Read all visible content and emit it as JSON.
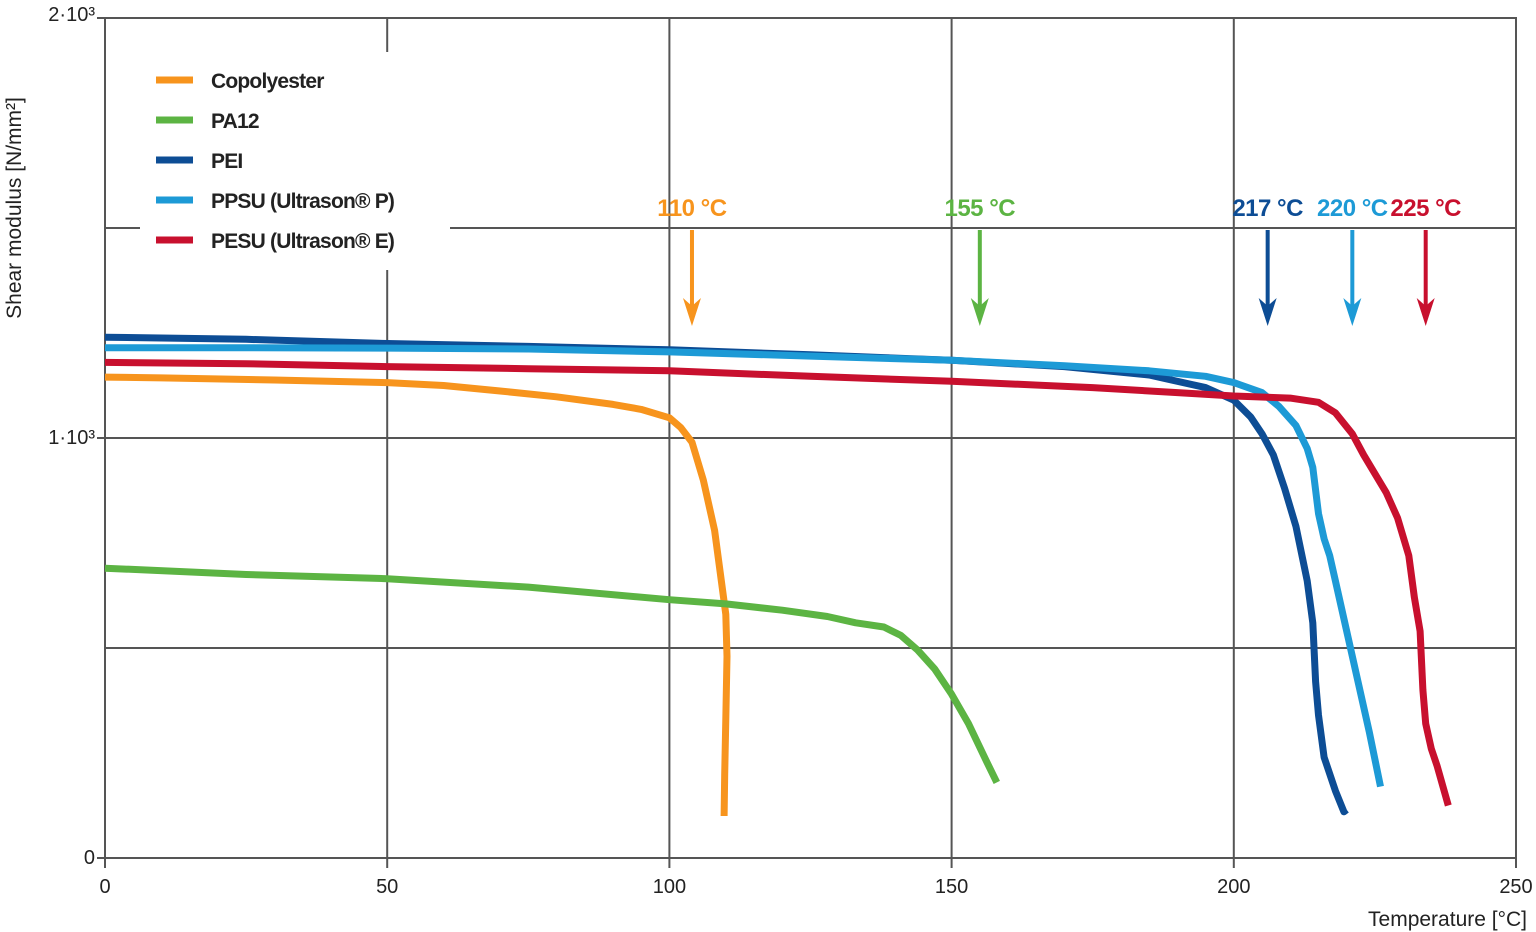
{
  "chart_data": {
    "type": "line",
    "xlabel": "Temperature [°C]",
    "ylabel": "Shear modulus [N/mm²]",
    "xlim": [
      0,
      250
    ],
    "ylim": [
      0,
      2000
    ],
    "x_ticks": [
      {
        "value": 0,
        "label": "0"
      },
      {
        "value": 50,
        "label": "50"
      },
      {
        "value": 100,
        "label": "100"
      },
      {
        "value": 150,
        "label": "150"
      },
      {
        "value": 200,
        "label": "200"
      },
      {
        "value": 250,
        "label": "250"
      }
    ],
    "y_ticks": [
      {
        "value": 0,
        "label": "0"
      },
      {
        "value": 1000,
        "label": "1·10³"
      },
      {
        "value": 2000,
        "label": "2·10³"
      }
    ],
    "y_gridlines": [
      500,
      1000,
      1500
    ],
    "grid": true,
    "legend_position": "top-left",
    "series": [
      {
        "name": "Copolyester",
        "color": "#F7941D",
        "points": [
          [
            0,
            1145
          ],
          [
            10,
            1143
          ],
          [
            30,
            1138
          ],
          [
            50,
            1132
          ],
          [
            60,
            1125
          ],
          [
            70,
            1112
          ],
          [
            80,
            1098
          ],
          [
            90,
            1080
          ],
          [
            95,
            1068
          ],
          [
            100,
            1048
          ],
          [
            102,
            1025
          ],
          [
            104,
            990
          ],
          [
            106,
            900
          ],
          [
            108,
            780
          ],
          [
            109,
            680
          ],
          [
            110,
            580
          ],
          [
            110.2,
            480
          ],
          [
            110,
            330
          ],
          [
            109.8,
            200
          ],
          [
            109.7,
            100
          ]
        ]
      },
      {
        "name": "PA12",
        "color": "#5CB443",
        "points": [
          [
            0,
            690
          ],
          [
            25,
            675
          ],
          [
            50,
            665
          ],
          [
            75,
            645
          ],
          [
            100,
            615
          ],
          [
            110,
            605
          ],
          [
            120,
            590
          ],
          [
            128,
            575
          ],
          [
            133,
            560
          ],
          [
            138,
            550
          ],
          [
            141,
            530
          ],
          [
            144,
            495
          ],
          [
            147,
            450
          ],
          [
            150,
            390
          ],
          [
            153,
            320
          ],
          [
            156,
            235
          ],
          [
            158,
            180
          ]
        ]
      },
      {
        "name": "PEI",
        "color": "#0D4D95",
        "points": [
          [
            0,
            1240
          ],
          [
            25,
            1235
          ],
          [
            50,
            1225
          ],
          [
            75,
            1218
          ],
          [
            100,
            1210
          ],
          [
            125,
            1198
          ],
          [
            150,
            1185
          ],
          [
            170,
            1170
          ],
          [
            185,
            1150
          ],
          [
            195,
            1120
          ],
          [
            200,
            1090
          ],
          [
            203,
            1050
          ],
          [
            205,
            1010
          ],
          [
            207,
            960
          ],
          [
            209,
            880
          ],
          [
            211,
            790
          ],
          [
            213,
            660
          ],
          [
            214,
            560
          ],
          [
            214.5,
            420
          ],
          [
            215,
            340
          ],
          [
            216,
            240
          ],
          [
            218,
            160
          ],
          [
            219.5,
            110
          ],
          [
            220,
            115
          ]
        ]
      },
      {
        "name": "PPSU (Ultrason® P)",
        "color": "#1D9AD6",
        "points": [
          [
            0,
            1215
          ],
          [
            25,
            1215
          ],
          [
            50,
            1214
          ],
          [
            75,
            1212
          ],
          [
            100,
            1205
          ],
          [
            125,
            1195
          ],
          [
            150,
            1185
          ],
          [
            170,
            1172
          ],
          [
            185,
            1160
          ],
          [
            195,
            1147
          ],
          [
            200,
            1132
          ],
          [
            205,
            1108
          ],
          [
            208,
            1075
          ],
          [
            211,
            1030
          ],
          [
            213,
            975
          ],
          [
            214,
            930
          ],
          [
            215,
            820
          ],
          [
            216,
            760
          ],
          [
            217,
            720
          ],
          [
            218,
            660
          ],
          [
            220,
            540
          ],
          [
            222,
            420
          ],
          [
            224,
            300
          ],
          [
            226,
            170
          ]
        ]
      },
      {
        "name": "PESU (Ultrason® E)",
        "color": "#C8102E",
        "points": [
          [
            0,
            1180
          ],
          [
            25,
            1177
          ],
          [
            50,
            1170
          ],
          [
            75,
            1165
          ],
          [
            100,
            1160
          ],
          [
            125,
            1147
          ],
          [
            150,
            1135
          ],
          [
            175,
            1120
          ],
          [
            190,
            1108
          ],
          [
            200,
            1100
          ],
          [
            210,
            1095
          ],
          [
            215,
            1085
          ],
          [
            218,
            1060
          ],
          [
            221,
            1010
          ],
          [
            223,
            960
          ],
          [
            225,
            915
          ],
          [
            227,
            870
          ],
          [
            229,
            810
          ],
          [
            231,
            720
          ],
          [
            232,
            620
          ],
          [
            233,
            540
          ],
          [
            233.5,
            400
          ],
          [
            234,
            320
          ],
          [
            235,
            260
          ],
          [
            236,
            220
          ],
          [
            238,
            125
          ]
        ]
      }
    ],
    "annotations": [
      {
        "label": "110 °C",
        "x": 104,
        "color": "#F7941D"
      },
      {
        "label": "155 °C",
        "x": 155,
        "color": "#5CB443"
      },
      {
        "label": "217 °C",
        "x": 206,
        "color": "#0D4D95"
      },
      {
        "label": "220 °C",
        "x": 221,
        "color": "#1D9AD6"
      },
      {
        "label": "225 °C",
        "x": 234,
        "color": "#C8102E"
      }
    ]
  }
}
